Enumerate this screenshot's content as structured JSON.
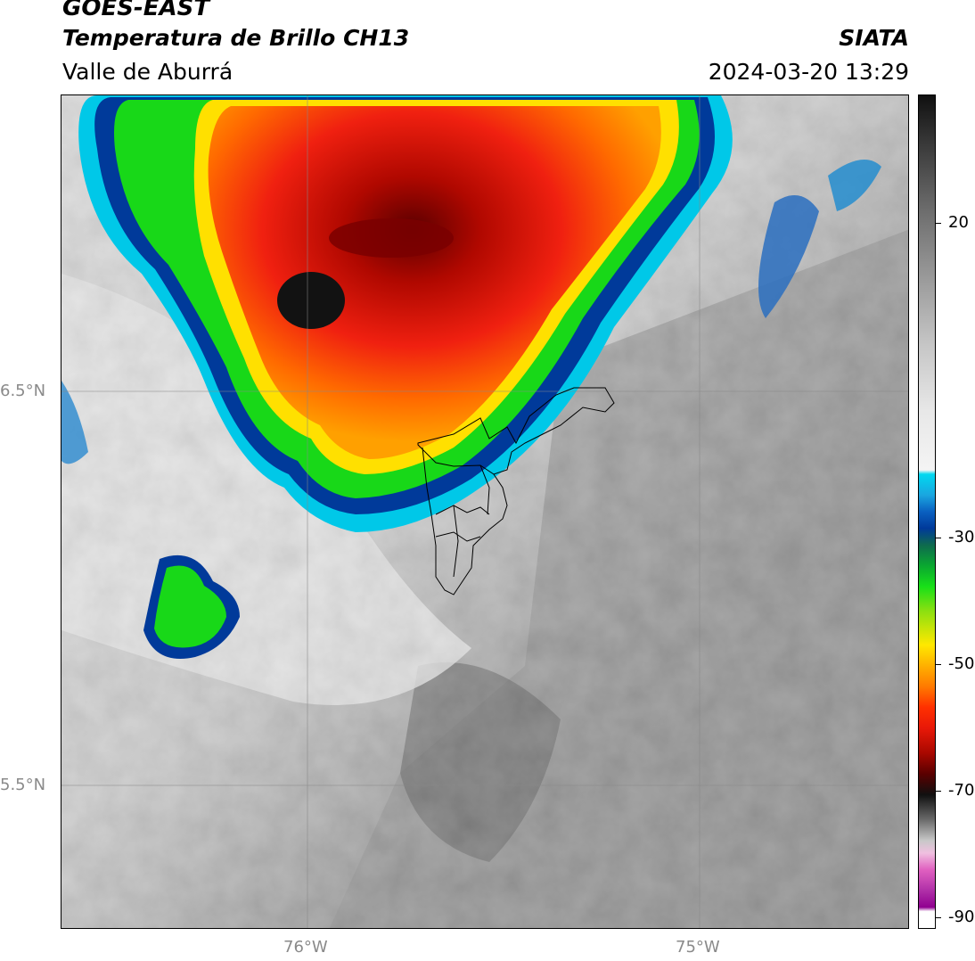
{
  "header": {
    "satellite": "GOES-EAST",
    "product": "Temperatura de Brillo CH13",
    "region": "Valle de Aburrá",
    "institution": "SIATA",
    "datetime": "2024-03-20 13:29"
  },
  "axes": {
    "y_ticks": [
      "6.5°N",
      "5.5°N"
    ],
    "x_ticks": [
      "76°W",
      "75°W"
    ]
  },
  "colorbar": {
    "ticks": [
      "20",
      "-30",
      "-50",
      "-70",
      "-90"
    ],
    "colors": {
      "warm_gray_light": "#f0f0f0",
      "warm_gray_dark": "#505050",
      "cyan": "#00d8f0",
      "blue": "#003a9a",
      "green": "#18e018",
      "yellow": "#ffe800",
      "orange": "#ff7a00",
      "red": "#e81808",
      "dark_red": "#5a0000",
      "black": "#101010",
      "magenta": "#e060c0",
      "purple": "#900090"
    }
  }
}
